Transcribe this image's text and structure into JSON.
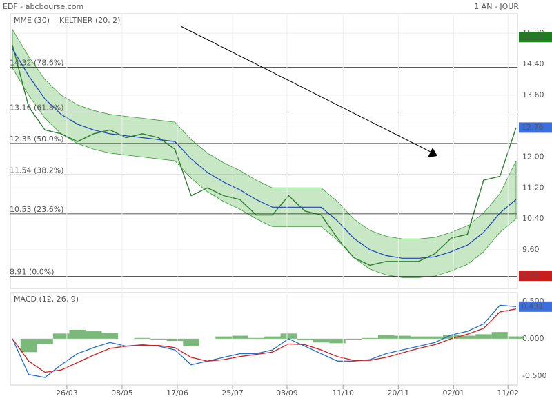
{
  "chart_data": [
    {
      "type": "line",
      "title": "EDF - abcbourse.com",
      "subtitle": "1 AN - JOUR",
      "xlim": [
        0,
        31
      ],
      "ylim": [
        8.6,
        15.56
      ],
      "yticks": [
        {
          "value": 15.2,
          "label": "15.20"
        },
        {
          "value": 14.4,
          "label": "14.40"
        },
        {
          "value": 13.6,
          "label": "13.60"
        },
        {
          "value": 12.8,
          "label": "12.80"
        },
        {
          "value": 12.0,
          "label": "12.00"
        },
        {
          "value": 11.2,
          "label": "11.20"
        },
        {
          "value": 10.4,
          "label": "10.40"
        },
        {
          "value": 9.6,
          "label": "9.60"
        }
      ],
      "grid": true,
      "series": [
        {
          "color": "#2e7d32",
          "values": [
            14.9,
            13.3,
            12.7,
            12.6,
            12.4,
            12.6,
            12.7,
            12.5,
            12.6,
            12.5,
            12.2,
            11.0,
            11.2,
            11.0,
            10.9,
            10.5,
            10.5,
            11.0,
            10.6,
            10.5,
            9.9,
            9.4,
            9.2,
            9.3,
            9.3,
            9.3,
            9.5,
            9.9,
            10.0,
            11.4,
            11.5,
            12.76
          ]
        },
        {
          "name": "MME (30)",
          "color": "#1f3fbf",
          "values": [
            14.8,
            14.1,
            13.5,
            13.1,
            12.85,
            12.7,
            12.6,
            12.55,
            12.5,
            12.45,
            12.4,
            11.95,
            11.6,
            11.35,
            11.15,
            10.9,
            10.7,
            10.7,
            10.7,
            10.7,
            10.35,
            9.9,
            9.6,
            9.45,
            9.38,
            9.38,
            9.42,
            9.55,
            9.72,
            10.05,
            10.55,
            10.9
          ]
        },
        {
          "name": "KELTNER (20, 2)",
          "color": "#3a9a3a",
          "upper": [
            15.3,
            14.6,
            14.0,
            13.6,
            13.35,
            13.2,
            13.1,
            13.05,
            13.0,
            12.95,
            12.9,
            12.45,
            12.1,
            11.85,
            11.65,
            11.4,
            11.2,
            11.2,
            11.2,
            11.2,
            10.85,
            10.4,
            10.1,
            9.95,
            9.88,
            9.88,
            9.92,
            10.05,
            10.22,
            10.55,
            11.05,
            11.9
          ],
          "lower": [
            14.3,
            13.6,
            13.0,
            12.6,
            12.35,
            12.2,
            12.1,
            12.05,
            12.0,
            11.95,
            11.9,
            11.45,
            11.1,
            10.85,
            10.65,
            10.4,
            10.2,
            10.2,
            10.2,
            10.2,
            9.85,
            9.4,
            9.1,
            8.95,
            8.88,
            8.88,
            8.92,
            9.05,
            9.22,
            9.55,
            10.05,
            10.4
          ]
        }
      ],
      "fib_levels": [
        {
          "level": 14.32,
          "label": "14.32 (78.6%)"
        },
        {
          "level": 13.16,
          "label": "13.16 (61.8%)"
        },
        {
          "level": 12.35,
          "label": "12.35 (50.0%)"
        },
        {
          "level": 11.54,
          "label": "11.54 (38.2%)"
        },
        {
          "level": 10.53,
          "label": "10.53 (23.6%)"
        },
        {
          "level": 8.91,
          "label": "8.91 (0.0%)"
        }
      ],
      "price_tags": [
        {
          "value": 15.1,
          "label": "15.10",
          "color": "#1e7e1e"
        },
        {
          "value": 12.76,
          "label": "12.76",
          "color": "#3b6fe0"
        },
        {
          "value": 8.93,
          "label": "8.93",
          "color": "#c81e1e"
        }
      ]
    },
    {
      "type": "macd",
      "title": "MACD (12, 26, 9)",
      "xlim": [
        0,
        31
      ],
      "ylim": [
        -0.64,
        0.61
      ],
      "yticks": [
        {
          "value": 0.5,
          "label": "0.500"
        },
        {
          "value": 0,
          "label": "0.000"
        },
        {
          "value": -0.5,
          "label": "-0.500"
        }
      ],
      "xticks": [
        {
          "value": 3.35,
          "label": "26/03"
        },
        {
          "value": 6.75,
          "label": "08/05"
        },
        {
          "value": 10.15,
          "label": "17/06"
        },
        {
          "value": 13.55,
          "label": "25/07"
        },
        {
          "value": 16.9,
          "label": "03/09"
        },
        {
          "value": 20.35,
          "label": "11/10"
        },
        {
          "value": 23.75,
          "label": "20/11"
        },
        {
          "value": 27.15,
          "label": "02/01"
        },
        {
          "value": 30.5,
          "label": "11/02"
        }
      ],
      "series": [
        {
          "color": "#1f6fd0",
          "values": [
            0,
            -0.48,
            -0.52,
            -0.35,
            -0.2,
            -0.12,
            -0.05,
            -0.1,
            -0.08,
            -0.1,
            -0.15,
            -0.35,
            -0.3,
            -0.25,
            -0.2,
            -0.2,
            -0.15,
            0.0,
            -0.1,
            -0.2,
            -0.3,
            -0.3,
            -0.28,
            -0.2,
            -0.15,
            -0.1,
            -0.05,
            0.05,
            0.1,
            0.2,
            0.45,
            0.431
          ]
        },
        {
          "color": "#d01e1e",
          "values": [
            0,
            -0.3,
            -0.45,
            -0.42,
            -0.32,
            -0.22,
            -0.13,
            -0.1,
            -0.09,
            -0.09,
            -0.12,
            -0.25,
            -0.3,
            -0.28,
            -0.24,
            -0.21,
            -0.18,
            -0.07,
            -0.08,
            -0.15,
            -0.24,
            -0.29,
            -0.29,
            -0.25,
            -0.19,
            -0.13,
            -0.08,
            0.0,
            0.06,
            0.14,
            0.36,
            0.4
          ]
        },
        {
          "color": "#5aa85a",
          "histogram": [
            0,
            -0.18,
            -0.07,
            0.07,
            0.12,
            0.1,
            0.08,
            0,
            0.01,
            -0.01,
            -0.03,
            -0.1,
            0,
            0.03,
            0.04,
            0.01,
            0.03,
            0.07,
            -0.02,
            -0.05,
            -0.06,
            -0.01,
            0.01,
            0.05,
            0.04,
            0.03,
            0.03,
            0.05,
            0.04,
            0.06,
            0.09,
            0.031
          ]
        }
      ],
      "price_tags": [
        {
          "value": 0.431,
          "label": "0.431",
          "color": "#3b6fe0"
        }
      ]
    }
  ]
}
